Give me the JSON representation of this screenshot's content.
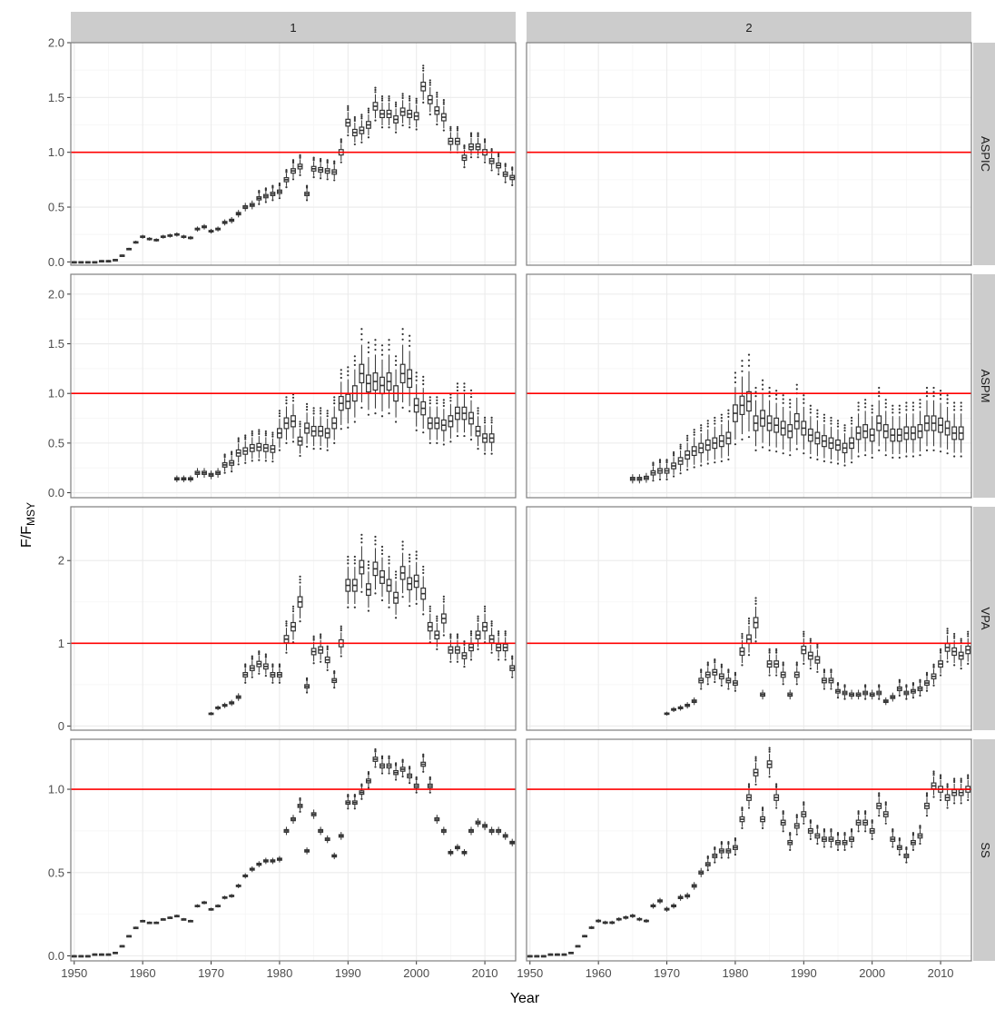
{
  "chart_data": {
    "type": "boxplot",
    "layout": "facet_grid",
    "xlabel": "Year",
    "ylabel_main": "F/F",
    "ylabel_sub": "MSY",
    "columns": [
      "1",
      "2"
    ],
    "rows": [
      "ASPIC",
      "ASPM",
      "VPA",
      "SS"
    ],
    "x_ticks": [
      1950,
      1960,
      1970,
      1980,
      1990,
      2000,
      2010
    ],
    "xlim": [
      1949.5,
      2014.5
    ],
    "reference_line": {
      "y": 1.0,
      "color": "#ff0000"
    },
    "colors": {
      "box": "#333333",
      "strip_bg": "#cccccc",
      "grid": "#ebebeb",
      "border": "#7f7f7f",
      "reference": "#ff0000"
    },
    "panels": [
      {
        "row": "ASPIC",
        "col": "1",
        "ylim": [
          -0.03,
          2.0
        ],
        "y_ticks": [
          0.0,
          0.5,
          1.0,
          1.5,
          2.0
        ],
        "y_tick_labels": [
          "0.0",
          "0.5",
          "1.0",
          "1.5",
          "2.0"
        ],
        "start_year": 1950,
        "medians": [
          0.0,
          0.0,
          0.0,
          0.0,
          0.01,
          0.01,
          0.02,
          0.06,
          0.12,
          0.18,
          0.23,
          0.21,
          0.2,
          0.23,
          0.24,
          0.25,
          0.23,
          0.22,
          0.3,
          0.32,
          0.28,
          0.3,
          0.36,
          0.38,
          0.44,
          0.5,
          0.52,
          0.58,
          0.6,
          0.62,
          0.64,
          0.75,
          0.83,
          0.87,
          0.62,
          0.85,
          0.84,
          0.83,
          0.82,
          1.0,
          1.27,
          1.18,
          1.2,
          1.25,
          1.42,
          1.35,
          1.35,
          1.3,
          1.37,
          1.35,
          1.33,
          1.6,
          1.48,
          1.38,
          1.32,
          1.1,
          1.1,
          0.95,
          1.05,
          1.05,
          1.0,
          0.92,
          0.88,
          0.8,
          0.77
        ],
        "spread": 0.07
      },
      {
        "row": "ASPIC",
        "col": "2",
        "ylim": [
          -0.03,
          2.0
        ],
        "y_ticks": [
          0.0,
          0.5,
          1.0,
          1.5,
          2.0
        ],
        "y_tick_labels": [
          "0.0",
          "0.5",
          "1.0",
          "1.5",
          "2.0"
        ],
        "start_year": 1950,
        "medians": [],
        "spread": 0.07
      },
      {
        "row": "ASPM",
        "col": "1",
        "ylim": [
          -0.05,
          2.2
        ],
        "y_ticks": [
          0.0,
          0.5,
          1.0,
          1.5,
          2.0
        ],
        "y_tick_labels": [
          "0.0",
          "0.5",
          "1.0",
          "1.5",
          "2.0"
        ],
        "start_year": 1965,
        "medians": [
          0.14,
          0.14,
          0.14,
          0.2,
          0.2,
          0.18,
          0.2,
          0.28,
          0.3,
          0.4,
          0.42,
          0.45,
          0.46,
          0.45,
          0.44,
          0.6,
          0.7,
          0.72,
          0.52,
          0.65,
          0.62,
          0.62,
          0.6,
          0.7,
          0.9,
          0.92,
          1.0,
          1.2,
          1.1,
          1.12,
          1.08,
          1.12,
          1.0,
          1.2,
          1.15,
          0.88,
          0.85,
          0.7,
          0.7,
          0.68,
          0.72,
          0.8,
          0.8,
          0.75,
          0.62,
          0.55,
          0.55
        ],
        "spread": 0.22
      },
      {
        "row": "ASPM",
        "col": "2",
        "ylim": [
          -0.05,
          2.2
        ],
        "y_ticks": [
          0.0,
          0.5,
          1.0,
          1.5,
          2.0
        ],
        "y_tick_labels": [
          "0.0",
          "0.5",
          "1.0",
          "1.5",
          "2.0"
        ],
        "start_year": 1965,
        "medians": [
          0.14,
          0.14,
          0.15,
          0.2,
          0.22,
          0.22,
          0.27,
          0.32,
          0.38,
          0.42,
          0.45,
          0.48,
          0.5,
          0.52,
          0.55,
          0.8,
          0.88,
          0.92,
          0.7,
          0.75,
          0.7,
          0.68,
          0.65,
          0.62,
          0.72,
          0.65,
          0.58,
          0.55,
          0.52,
          0.5,
          0.48,
          0.45,
          0.5,
          0.6,
          0.62,
          0.58,
          0.7,
          0.62,
          0.58,
          0.58,
          0.6,
          0.6,
          0.62,
          0.7,
          0.7,
          0.68,
          0.65,
          0.6,
          0.6
        ],
        "spread": 0.3
      },
      {
        "row": "VPA",
        "col": "1",
        "ylim": [
          -0.05,
          2.65
        ],
        "y_ticks": [
          0,
          1,
          2
        ],
        "y_tick_labels": [
          "0",
          "1",
          "2"
        ],
        "start_year": 1970,
        "medians": [
          0.15,
          0.22,
          0.25,
          0.28,
          0.35,
          0.62,
          0.7,
          0.75,
          0.72,
          0.62,
          0.62,
          1.05,
          1.2,
          1.5,
          0.48,
          0.9,
          0.92,
          0.8,
          0.55,
          1.0,
          1.7,
          1.7,
          1.92,
          1.65,
          1.9,
          1.8,
          1.7,
          1.55,
          1.85,
          1.72,
          1.75,
          1.6,
          1.2,
          1.1,
          1.3,
          0.92,
          0.92,
          0.85,
          0.95,
          1.1,
          1.2,
          1.05,
          0.95,
          0.95,
          0.7
        ],
        "spread": 0.12
      },
      {
        "row": "VPA",
        "col": "2",
        "ylim": [
          -0.05,
          2.65
        ],
        "y_ticks": [
          0,
          1,
          2
        ],
        "y_tick_labels": [
          "0",
          "1",
          "2"
        ],
        "start_year": 1970,
        "medians": [
          0.15,
          0.2,
          0.22,
          0.25,
          0.3,
          0.55,
          0.62,
          0.65,
          0.6,
          0.55,
          0.52,
          0.9,
          1.05,
          1.25,
          0.38,
          0.75,
          0.75,
          0.62,
          0.38,
          0.62,
          0.92,
          0.85,
          0.8,
          0.55,
          0.55,
          0.42,
          0.4,
          0.38,
          0.38,
          0.4,
          0.38,
          0.4,
          0.3,
          0.35,
          0.45,
          0.4,
          0.42,
          0.45,
          0.52,
          0.6,
          0.75,
          0.95,
          0.9,
          0.85,
          0.92
        ],
        "spread": 0.14
      },
      {
        "row": "SS",
        "col": "1",
        "ylim": [
          -0.03,
          1.3
        ],
        "y_ticks": [
          0.0,
          0.5,
          1.0
        ],
        "y_tick_labels": [
          "0.0",
          "0.5",
          "1.0"
        ],
        "start_year": 1950,
        "medians": [
          0.0,
          0.0,
          0.0,
          0.01,
          0.01,
          0.01,
          0.02,
          0.06,
          0.12,
          0.17,
          0.21,
          0.2,
          0.2,
          0.22,
          0.23,
          0.24,
          0.22,
          0.21,
          0.3,
          0.32,
          0.28,
          0.3,
          0.35,
          0.36,
          0.42,
          0.48,
          0.52,
          0.55,
          0.57,
          0.57,
          0.58,
          0.75,
          0.82,
          0.9,
          0.63,
          0.85,
          0.75,
          0.7,
          0.6,
          0.72,
          0.92,
          0.92,
          0.98,
          1.05,
          1.18,
          1.14,
          1.14,
          1.1,
          1.12,
          1.08,
          1.02,
          1.15,
          1.02,
          0.82,
          0.75,
          0.62,
          0.65,
          0.62,
          0.75,
          0.8,
          0.78,
          0.75,
          0.75,
          0.72,
          0.68
        ],
        "spread": 0.03
      },
      {
        "row": "SS",
        "col": "2",
        "ylim": [
          -0.03,
          1.3
        ],
        "y_ticks": [
          0.0,
          0.5,
          1.0
        ],
        "y_tick_labels": [
          "0.0",
          "0.5",
          "1.0"
        ],
        "start_year": 1950,
        "medians": [
          0.0,
          0.0,
          0.0,
          0.01,
          0.01,
          0.01,
          0.02,
          0.06,
          0.12,
          0.17,
          0.21,
          0.2,
          0.2,
          0.22,
          0.23,
          0.24,
          0.22,
          0.21,
          0.3,
          0.33,
          0.28,
          0.3,
          0.35,
          0.36,
          0.42,
          0.5,
          0.55,
          0.6,
          0.63,
          0.63,
          0.65,
          0.82,
          0.95,
          1.1,
          0.82,
          1.15,
          0.95,
          0.8,
          0.68,
          0.78,
          0.85,
          0.75,
          0.72,
          0.7,
          0.7,
          0.68,
          0.68,
          0.7,
          0.8,
          0.8,
          0.75,
          0.9,
          0.85,
          0.7,
          0.65,
          0.6,
          0.68,
          0.72,
          0.9,
          1.02,
          1.0,
          0.95,
          0.98,
          0.98,
          1.0
        ],
        "spread": 0.05
      }
    ]
  }
}
